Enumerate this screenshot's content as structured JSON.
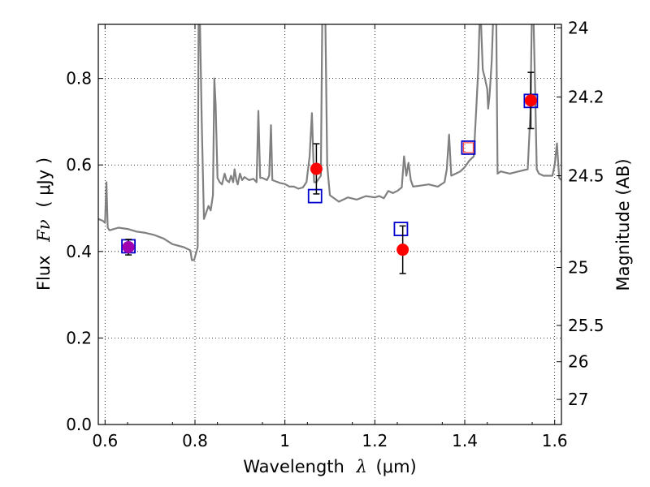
{
  "chart_data": {
    "type": "scatter",
    "title": "",
    "xlabel": "Wavelength",
    "xlabel_symbol": "λ",
    "xlabel_unit": "(μm)",
    "ylabel": "Flux",
    "ylabel_symbol": "Fν",
    "ylabel_unit": "( μJy )",
    "y2label": "Magnitude (AB)",
    "xlim": [
      0.585,
      1.615
    ],
    "ylim": [
      0.0,
      0.925
    ],
    "grid": true,
    "grid_style": "dotted",
    "x_ticks": [
      0.6,
      0.8,
      1.0,
      1.2,
      1.4,
      1.6
    ],
    "x_tick_labels": [
      "0.6",
      "0.8",
      "1",
      "1.2",
      "1.4",
      "1.6"
    ],
    "y_ticks": [
      0.0,
      0.2,
      0.4,
      0.6,
      0.8
    ],
    "y_tick_labels": [
      "0.0",
      "0.2",
      "0.4",
      "0.6",
      "0.8"
    ],
    "y2_ticks": [
      {
        "label": "24",
        "flux": 0.917
      },
      {
        "label": "24.2",
        "flux": 0.757
      },
      {
        "label": "24.5",
        "flux": 0.575
      },
      {
        "label": "25",
        "flux": 0.363
      },
      {
        "label": "25.5",
        "flux": 0.229
      },
      {
        "label": "26",
        "flux": 0.145
      },
      {
        "label": "27",
        "flux": 0.058
      }
    ],
    "series": [
      {
        "kind": "line",
        "color": "#808080",
        "points": [
          [
            0.585,
            0.475
          ],
          [
            0.595,
            0.471
          ],
          [
            0.6,
            0.466
          ],
          [
            0.603,
            0.56
          ],
          [
            0.606,
            0.455
          ],
          [
            0.61,
            0.449
          ],
          [
            0.63,
            0.455
          ],
          [
            0.65,
            0.452
          ],
          [
            0.67,
            0.446
          ],
          [
            0.69,
            0.443
          ],
          [
            0.71,
            0.438
          ],
          [
            0.73,
            0.43
          ],
          [
            0.75,
            0.417
          ],
          [
            0.76,
            0.414
          ],
          [
            0.775,
            0.41
          ],
          [
            0.785,
            0.405
          ],
          [
            0.79,
            0.402
          ],
          [
            0.793,
            0.38
          ],
          [
            0.798,
            0.38
          ],
          [
            0.802,
            0.395
          ],
          [
            0.806,
            0.41
          ],
          [
            0.808,
            0.93
          ],
          [
            0.811,
            0.93
          ],
          [
            0.815,
            0.7
          ],
          [
            0.82,
            0.475
          ],
          [
            0.825,
            0.49
          ],
          [
            0.83,
            0.505
          ],
          [
            0.835,
            0.495
          ],
          [
            0.84,
            0.53
          ],
          [
            0.843,
            0.8
          ],
          [
            0.846,
            0.74
          ],
          [
            0.85,
            0.57
          ],
          [
            0.855,
            0.56
          ],
          [
            0.86,
            0.555
          ],
          [
            0.866,
            0.58
          ],
          [
            0.87,
            0.565
          ],
          [
            0.876,
            0.56
          ],
          [
            0.88,
            0.575
          ],
          [
            0.885,
            0.56
          ],
          [
            0.888,
            0.59
          ],
          [
            0.892,
            0.565
          ],
          [
            0.895,
            0.555
          ],
          [
            0.9,
            0.58
          ],
          [
            0.905,
            0.565
          ],
          [
            0.91,
            0.572
          ],
          [
            0.92,
            0.565
          ],
          [
            0.93,
            0.568
          ],
          [
            0.937,
            0.56
          ],
          [
            0.941,
            0.725
          ],
          [
            0.945,
            0.57
          ],
          [
            0.95,
            0.57
          ],
          [
            0.96,
            0.565
          ],
          [
            0.965,
            0.575
          ],
          [
            0.969,
            0.692
          ],
          [
            0.972,
            0.565
          ],
          [
            0.98,
            0.562
          ],
          [
            0.99,
            0.558
          ],
          [
            1.0,
            0.556
          ],
          [
            1.01,
            0.55
          ],
          [
            1.02,
            0.55
          ],
          [
            1.03,
            0.545
          ],
          [
            1.04,
            0.548
          ],
          [
            1.048,
            0.56
          ],
          [
            1.055,
            0.62
          ],
          [
            1.06,
            0.72
          ],
          [
            1.065,
            0.56
          ],
          [
            1.07,
            0.56
          ],
          [
            1.075,
            0.568
          ],
          [
            1.08,
            0.575
          ],
          [
            1.083,
            0.93
          ],
          [
            1.09,
            0.93
          ],
          [
            1.094,
            0.6
          ],
          [
            1.1,
            0.53
          ],
          [
            1.12,
            0.515
          ],
          [
            1.14,
            0.525
          ],
          [
            1.16,
            0.52
          ],
          [
            1.18,
            0.528
          ],
          [
            1.2,
            0.525
          ],
          [
            1.21,
            0.528
          ],
          [
            1.22,
            0.523
          ],
          [
            1.23,
            0.54
          ],
          [
            1.24,
            0.535
          ],
          [
            1.25,
            0.54
          ],
          [
            1.26,
            0.548
          ],
          [
            1.265,
            0.62
          ],
          [
            1.27,
            0.575
          ],
          [
            1.275,
            0.605
          ],
          [
            1.28,
            0.565
          ],
          [
            1.285,
            0.55
          ],
          [
            1.3,
            0.552
          ],
          [
            1.32,
            0.555
          ],
          [
            1.34,
            0.55
          ],
          [
            1.355,
            0.56
          ],
          [
            1.36,
            0.59
          ],
          [
            1.365,
            0.67
          ],
          [
            1.37,
            0.575
          ],
          [
            1.38,
            0.58
          ],
          [
            1.39,
            0.585
          ],
          [
            1.4,
            0.595
          ],
          [
            1.41,
            0.61
          ],
          [
            1.42,
            0.62
          ],
          [
            1.425,
            0.72
          ],
          [
            1.43,
            0.82
          ],
          [
            1.433,
            0.935
          ],
          [
            1.436,
            0.935
          ],
          [
            1.44,
            0.82
          ],
          [
            1.445,
            0.8
          ],
          [
            1.45,
            0.775
          ],
          [
            1.452,
            0.73
          ],
          [
            1.455,
            0.76
          ],
          [
            1.46,
            0.84
          ],
          [
            1.463,
            0.935
          ],
          [
            1.47,
            0.935
          ],
          [
            1.473,
            0.58
          ],
          [
            1.48,
            0.585
          ],
          [
            1.5,
            0.58
          ],
          [
            1.52,
            0.585
          ],
          [
            1.54,
            0.59
          ],
          [
            1.546,
            0.72
          ],
          [
            1.549,
            0.935
          ],
          [
            1.553,
            0.935
          ],
          [
            1.557,
            0.75
          ],
          [
            1.56,
            0.59
          ],
          [
            1.565,
            0.58
          ],
          [
            1.575,
            0.575
          ],
          [
            1.585,
            0.575
          ],
          [
            1.595,
            0.575
          ],
          [
            1.6,
            0.6
          ],
          [
            1.605,
            0.65
          ],
          [
            1.61,
            0.57
          ],
          [
            1.615,
            0.565
          ]
        ]
      },
      {
        "kind": "model_squares",
        "color": "#0000cc",
        "points": [
          {
            "x": 0.652,
            "y": 0.412
          },
          {
            "x": 1.067,
            "y": 0.528
          },
          {
            "x": 1.258,
            "y": 0.452
          },
          {
            "x": 1.408,
            "y": 0.64
          },
          {
            "x": 1.547,
            "y": 0.748
          }
        ]
      },
      {
        "kind": "observed",
        "color": "#ff0000",
        "points": [
          {
            "x": 0.652,
            "y": 0.41,
            "err": 0.018,
            "color": "#a000b0"
          },
          {
            "x": 1.07,
            "y": 0.591,
            "err": 0.058
          },
          {
            "x": 1.262,
            "y": 0.404,
            "err": 0.055
          },
          {
            "x": 1.408,
            "y": 0.64,
            "err": 0.0,
            "hollow": true
          },
          {
            "x": 1.547,
            "y": 0.749,
            "err": 0.065
          }
        ]
      }
    ]
  }
}
